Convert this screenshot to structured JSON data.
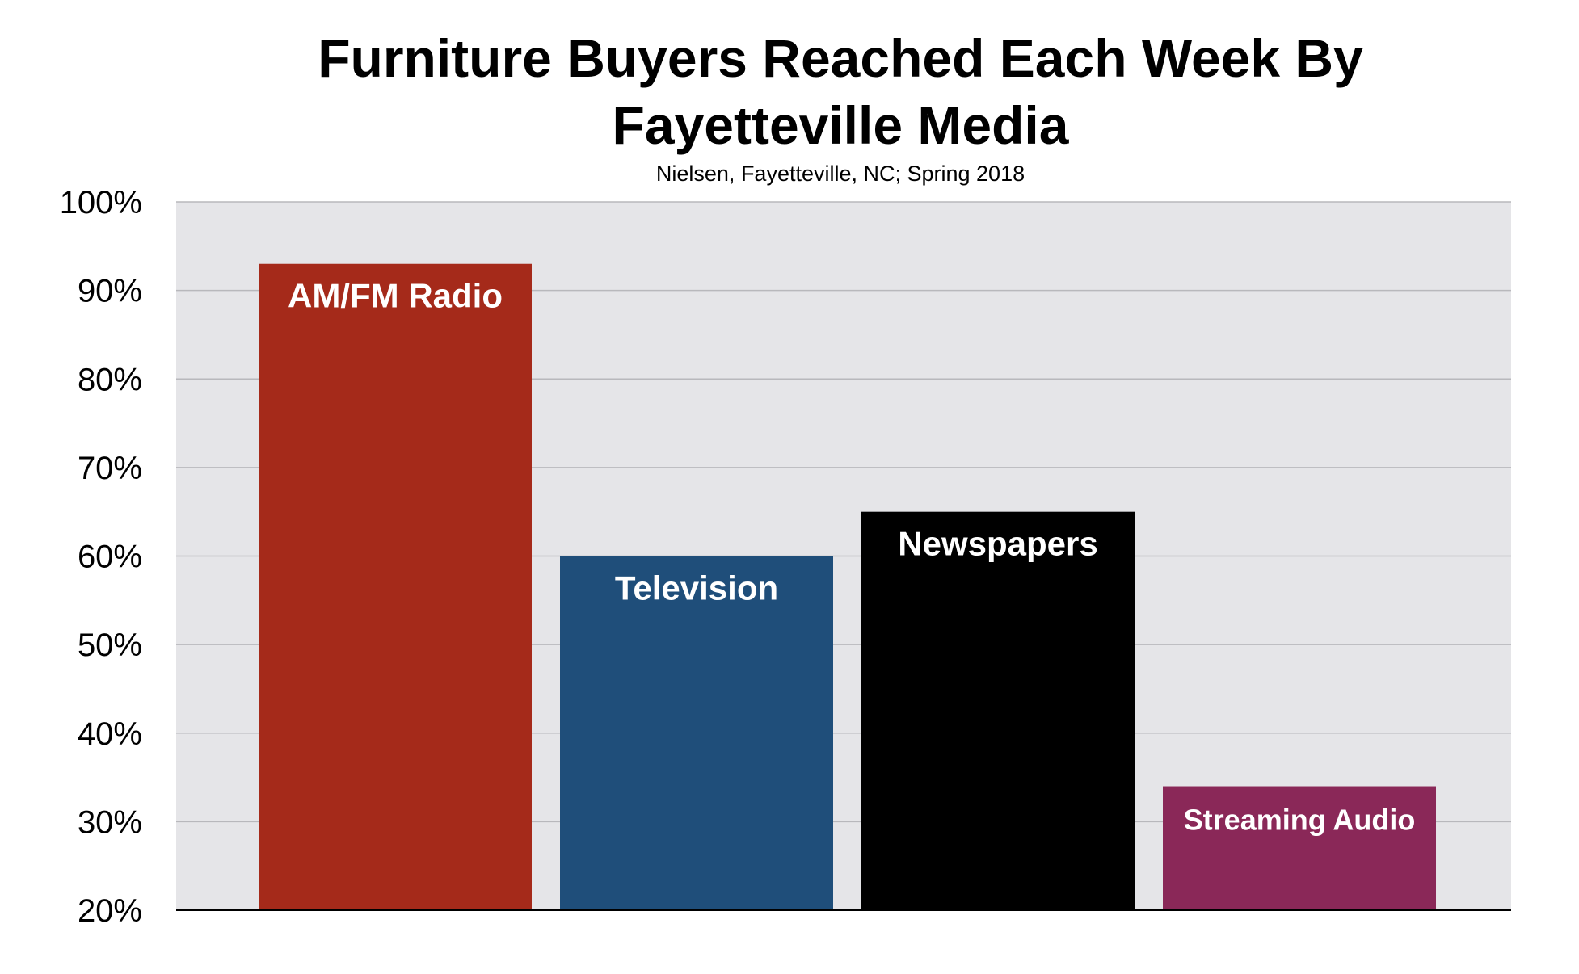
{
  "chart_data": {
    "type": "bar",
    "title": "Furniture Buyers Reached Each Week By Fayetteville Media",
    "title_lines": [
      "Furniture Buyers Reached Each Week By",
      "Fayetteville Media"
    ],
    "subtitle": "Nielsen, Fayetteville, NC; Spring 2018",
    "xlabel": "",
    "ylabel": "",
    "ylim": [
      20,
      100
    ],
    "yticks": [
      "20%",
      "30%",
      "40%",
      "50%",
      "60%",
      "70%",
      "80%",
      "90%",
      "100%"
    ],
    "grid": true,
    "legend": "none",
    "categories": [
      "AM/FM Radio",
      "Television",
      "Newspapers",
      "Streaming Audio"
    ],
    "values": [
      93,
      60,
      65,
      34
    ],
    "colors": [
      "#a52a1a",
      "#1f4e7a",
      "#000000",
      "#8a2858"
    ],
    "plot_background": "#e5e5e8"
  }
}
